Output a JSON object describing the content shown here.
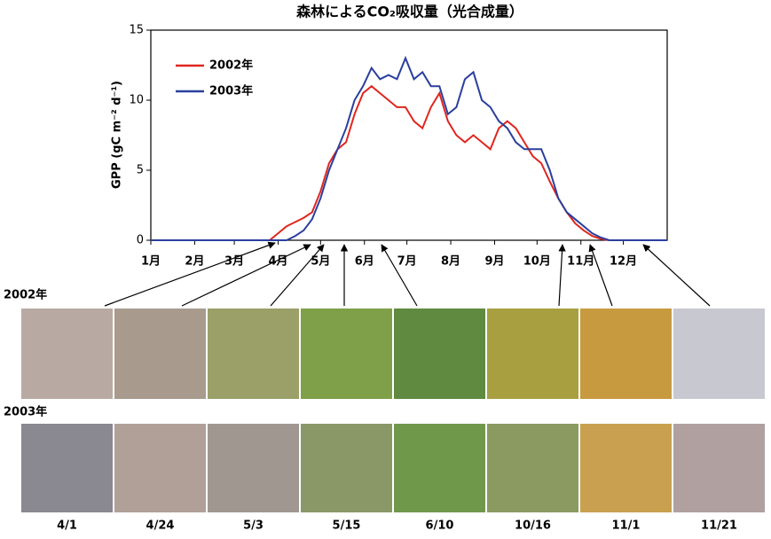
{
  "chart_data": {
    "type": "line",
    "title": "森林によるCO₂吸収量（光合成量）",
    "y_label": "GPP (gC m⁻² d⁻¹)",
    "x": [
      0,
      60,
      84,
      90,
      96,
      102,
      108,
      114,
      120,
      126,
      132,
      138,
      144,
      150,
      156,
      162,
      168,
      174,
      180,
      186,
      192,
      198,
      204,
      210,
      216,
      222,
      228,
      234,
      240,
      246,
      252,
      258,
      264,
      270,
      276,
      282,
      288,
      294,
      300,
      306,
      312,
      318,
      324,
      330,
      365
    ],
    "series": [
      {
        "name": "2002年",
        "color": "#e0261f",
        "values": [
          0,
          0,
          0,
          0.5,
          1,
          1.3,
          1.6,
          2,
          3.5,
          5.5,
          6.5,
          7,
          9,
          10.5,
          11,
          10.5,
          10,
          9.5,
          9.5,
          8.5,
          8,
          9.5,
          10.5,
          8.5,
          7.5,
          7,
          7.5,
          7,
          6.5,
          8,
          8.5,
          8,
          7,
          6,
          5.5,
          4.2,
          3,
          2,
          1.2,
          0.7,
          0.3,
          0.1,
          0,
          0,
          0
        ]
      },
      {
        "name": "2003年",
        "color": "#2a3f9e",
        "values": [
          0,
          0,
          0,
          0,
          0,
          0.3,
          0.7,
          1.5,
          3,
          5,
          6.5,
          8,
          10,
          11,
          12.3,
          11.5,
          11.8,
          11.5,
          13,
          11.5,
          12,
          11,
          11,
          9,
          9.5,
          11.5,
          12,
          10,
          9.5,
          8.5,
          8,
          7,
          6.5,
          6.5,
          6.5,
          5,
          3,
          2,
          1.5,
          1,
          0.5,
          0.2,
          0,
          0,
          0
        ]
      }
    ],
    "xlim": [
      0,
      365
    ],
    "xticks": [
      {
        "value": 0,
        "label": "1月"
      },
      {
        "value": 31,
        "label": "2月"
      },
      {
        "value": 59,
        "label": "3月"
      },
      {
        "value": 90,
        "label": "4月"
      },
      {
        "value": 120,
        "label": "5月"
      },
      {
        "value": 151,
        "label": "6月"
      },
      {
        "value": 181,
        "label": "7月"
      },
      {
        "value": 212,
        "label": "8月"
      },
      {
        "value": 243,
        "label": "9月"
      },
      {
        "value": 273,
        "label": "10月"
      },
      {
        "value": 304,
        "label": "11月"
      },
      {
        "value": 334,
        "label": "12月"
      }
    ],
    "ylim": [
      0,
      15
    ],
    "yticks": [
      0,
      5,
      10,
      15
    ],
    "grid": false,
    "legend": "upper-left"
  },
  "photos": {
    "rows": [
      "2002年",
      "2003年"
    ],
    "dates": [
      "4/1",
      "4/24",
      "5/3",
      "5/15",
      "6/10",
      "10/16",
      "11/1",
      "11/21"
    ]
  }
}
